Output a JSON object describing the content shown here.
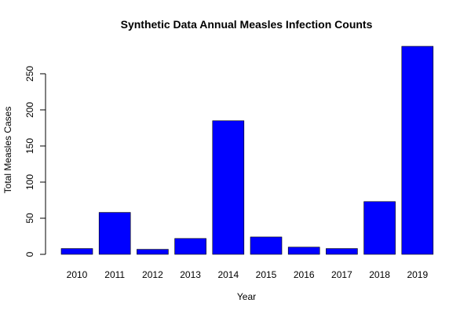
{
  "chart_data": {
    "type": "bar",
    "title": "Synthetic Data Annual Measles Infection Counts",
    "xlabel": "Year",
    "ylabel": "Total Measles Cases",
    "categories": [
      "2010",
      "2011",
      "2012",
      "2013",
      "2014",
      "2015",
      "2016",
      "2017",
      "2018",
      "2019"
    ],
    "values": [
      8,
      58,
      7,
      22,
      185,
      24,
      10,
      8,
      73,
      288
    ],
    "ylim": [
      0,
      288
    ],
    "yticks": [
      0,
      50,
      100,
      150,
      200,
      250
    ],
    "bar_color": "#0000ff",
    "grid": false
  }
}
